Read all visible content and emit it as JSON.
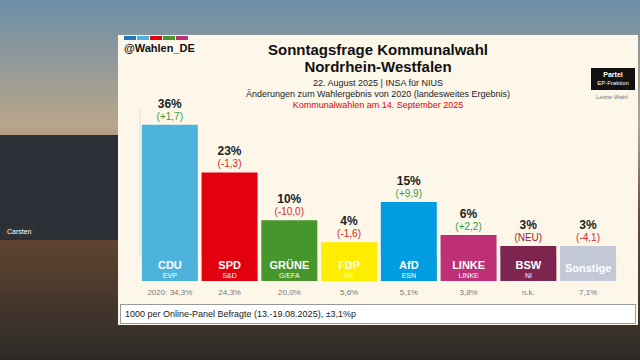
{
  "chart_data": {
    "type": "bar",
    "title": [
      "Sonntagsfrage Kommunalwahl",
      "Nordrhein-Westfalen"
    ],
    "subtitle": [
      "22. August 2025 | INSA für NIUS",
      "Änderungen zum Wahlergebnis von 2020 (landesweites Ergebnis)"
    ],
    "annotation": "Kommunalwahlen am 14. September 2025",
    "source": "@Wahlen_DE",
    "footer": "1000 per Online-Panel Befragte (13.-19.08.2025), ±3,1%p",
    "categories": [
      "CDU",
      "SPD",
      "GRÜNE",
      "FDP",
      "AfD",
      "LINKE",
      "BSW",
      "Sonstige"
    ],
    "groups": [
      "EVP",
      "S&D",
      "G/EFA",
      "RE",
      "ESN",
      "LINKE",
      "NI",
      null
    ],
    "values": [
      36,
      23,
      10,
      4,
      15,
      6,
      3,
      3
    ],
    "value_labels": [
      "36%",
      "23%",
      "10%",
      "4%",
      "15%",
      "6%",
      "3%",
      "3%"
    ],
    "changes": [
      1.7,
      -1.3,
      -10.0,
      -1.6,
      9.9,
      2.2,
      null,
      -4.1
    ],
    "change_labels": [
      "(+1,7)",
      "(-1,3)",
      "(-10,0)",
      "(-1,6)",
      "(+9,9)",
      "(+2,2)",
      "(NEU)",
      "(-4,1)"
    ],
    "previous_prefix": "2020:",
    "previous": [
      34.3,
      24.3,
      20.0,
      5.6,
      5.1,
      3.8,
      null,
      7.1
    ],
    "previous_labels": [
      "34,3%",
      "24,3%",
      "20,0%",
      "5,6%",
      "5,1%",
      "3,8%",
      "n.k.",
      "7,1%"
    ],
    "colors": [
      "#4db3dc",
      "#e3000f",
      "#46962b",
      "#ffed00",
      "#009ee0",
      "#be3075",
      "#7d254f",
      "#c3c8d6"
    ],
    "ylim": [
      0,
      40
    ],
    "tick_labels": false,
    "data_labels": true
  },
  "overlay": {
    "speaker": "Carsten",
    "legend_box": [
      "Partei",
      "EP-Fraktion"
    ],
    "legend_note": "Letzte Wahl"
  }
}
